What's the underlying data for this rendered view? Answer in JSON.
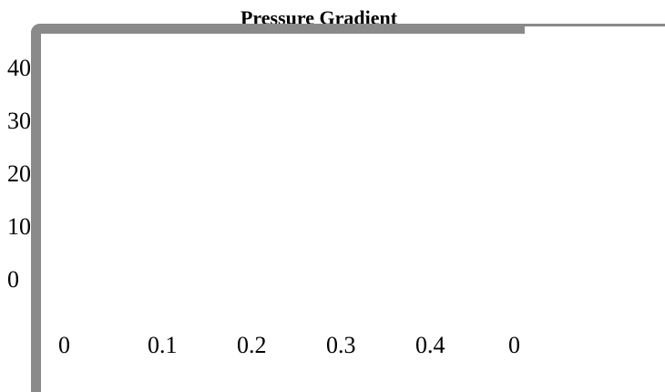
{
  "chart_data": {
    "type": "line",
    "title": "Pressure Gradient",
    "xlabel": "",
    "ylabel": "",
    "x_ticks": [
      "0",
      "0.1",
      "0.2",
      "0.3",
      "0.4",
      "0"
    ],
    "y_ticks": [
      "40",
      "30",
      "20",
      "10",
      "0"
    ],
    "series": [],
    "grid": false,
    "legend": "none"
  },
  "colors": {
    "frame": "#8a8a8a",
    "text": "#000000",
    "background": "#ffffff"
  }
}
